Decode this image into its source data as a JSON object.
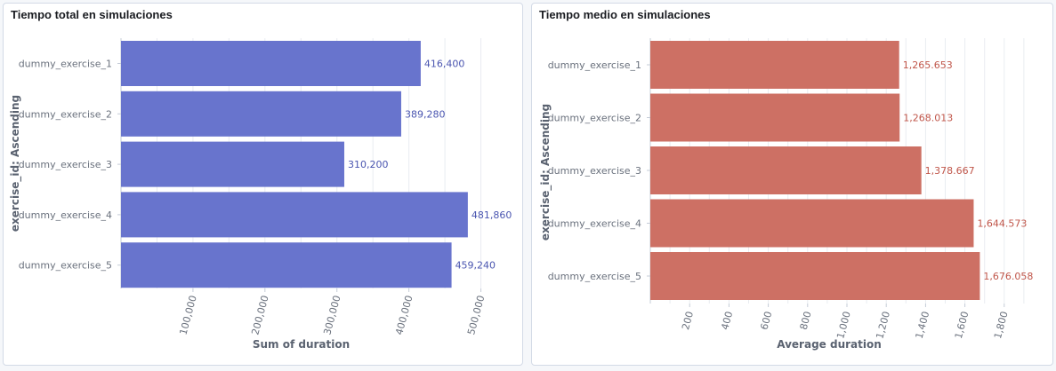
{
  "charts": [
    {
      "panel_title": "Tiempo total en simulaciones",
      "chart_data": {
        "type": "bar",
        "orientation": "horizontal",
        "title": "Tiempo total en simulaciones",
        "ylabel": "exercise_id: Ascending",
        "xlabel": "Sum of duration",
        "categories": [
          "dummy_exercise_1",
          "dummy_exercise_2",
          "dummy_exercise_3",
          "dummy_exercise_4",
          "dummy_exercise_5"
        ],
        "values": [
          416400,
          389280,
          310200,
          481860,
          459240
        ],
        "value_labels": [
          "416,400",
          "389,280",
          "310,200",
          "481,860",
          "459,240"
        ],
        "xlim": [
          0,
          550000
        ],
        "ticks": [
          100000,
          200000,
          300000,
          400000,
          500000
        ],
        "tick_labels": [
          "100,000",
          "200,000",
          "300,000",
          "400,000",
          "500,000"
        ],
        "minor_step": 50000,
        "grid": true,
        "color": "#6874cd",
        "label_color": "#4a55b0"
      }
    },
    {
      "panel_title": "Tiempo medio en simulaciones",
      "chart_data": {
        "type": "bar",
        "orientation": "horizontal",
        "title": "Tiempo medio en simulaciones",
        "ylabel": "exercise_id: Ascending",
        "xlabel": "Average duration",
        "categories": [
          "dummy_exercise_1",
          "dummy_exercise_2",
          "dummy_exercise_3",
          "dummy_exercise_4",
          "dummy_exercise_5"
        ],
        "values": [
          1265.653,
          1268.013,
          1378.667,
          1644.573,
          1676.058
        ],
        "value_labels": [
          "1,265.653",
          "1,268.013",
          "1,378.667",
          "1,644.573",
          "1,676.058"
        ],
        "xlim": [
          0,
          2000
        ],
        "ticks": [
          200,
          400,
          600,
          800,
          1000,
          1200,
          1400,
          1600,
          1800
        ],
        "tick_labels": [
          "200",
          "400",
          "600",
          "800",
          "1,000",
          "1,200",
          "1,400",
          "1,600",
          "1,800"
        ],
        "minor_step": 100,
        "grid": true,
        "color": "#cd7064",
        "label_color": "#c0564a"
      }
    }
  ]
}
